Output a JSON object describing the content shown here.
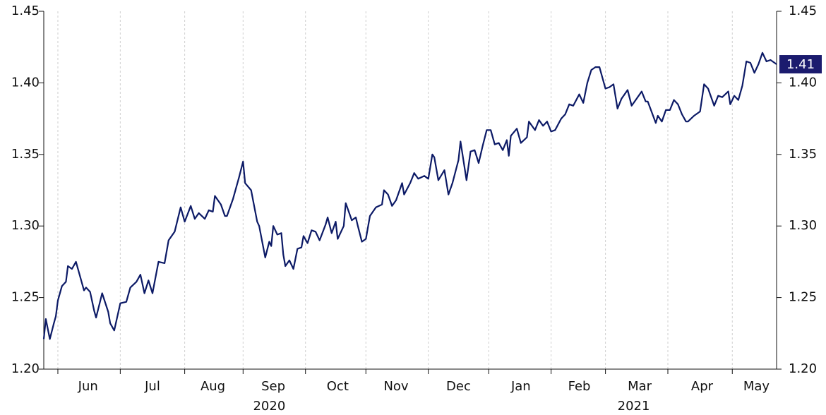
{
  "chart_data": {
    "type": "line",
    "x": [
      0,
      1,
      3,
      5,
      6,
      7,
      9,
      11,
      12,
      14,
      16,
      20,
      21,
      23,
      25,
      26,
      29,
      32,
      33,
      35,
      38,
      41,
      43,
      46,
      48,
      50,
      52,
      54,
      57,
      60,
      62,
      65,
      68,
      70,
      73,
      75,
      77,
      80,
      82,
      84,
      85,
      88,
      90,
      91,
      94,
      97,
      99,
      100,
      103,
      106,
      107,
      110,
      112,
      113,
      114,
      116,
      118,
      119,
      120,
      122,
      124,
      126,
      128,
      129,
      131,
      133,
      135,
      137,
      140,
      141,
      143,
      145,
      146,
      149,
      150,
      153,
      155,
      156,
      158,
      160,
      162,
      165,
      168,
      169,
      171,
      173,
      175,
      178,
      179,
      182,
      184,
      186,
      189,
      191,
      193,
      194,
      196,
      199,
      201,
      203,
      206,
      207,
      210,
      212,
      214,
      216,
      218,
      220,
      222,
      224,
      226,
      228,
      230,
      231,
      232,
      235,
      237,
      240,
      241,
      244,
      246,
      248,
      250,
      252,
      254,
      257,
      259,
      261,
      263,
      266,
      268,
      270,
      272,
      274,
      276,
      279,
      281,
      283,
      285,
      287,
      290,
      292,
      294,
      297,
      299,
      300,
      304,
      305,
      307,
      309,
      311,
      313,
      315,
      317,
      319,
      320,
      323,
      326,
      328,
      330,
      333,
      335,
      337,
      340,
      341,
      343,
      345,
      347,
      349,
      351,
      353,
      355,
      357,
      359,
      361,
      364
    ],
    "values": [
      1.221,
      1.235,
      1.221,
      1.232,
      1.237,
      1.248,
      1.258,
      1.261,
      1.272,
      1.27,
      1.275,
      1.255,
      1.257,
      1.254,
      1.241,
      1.236,
      1.253,
      1.24,
      1.232,
      1.227,
      1.246,
      1.247,
      1.257,
      1.261,
      1.266,
      1.253,
      1.262,
      1.253,
      1.275,
      1.274,
      1.29,
      1.296,
      1.313,
      1.303,
      1.314,
      1.305,
      1.309,
      1.305,
      1.311,
      1.31,
      1.321,
      1.315,
      1.307,
      1.307,
      1.319,
      1.334,
      1.345,
      1.33,
      1.325,
      1.303,
      1.3,
      1.278,
      1.289,
      1.286,
      1.3,
      1.294,
      1.295,
      1.28,
      1.272,
      1.276,
      1.27,
      1.284,
      1.285,
      1.293,
      1.288,
      1.297,
      1.296,
      1.29,
      1.301,
      1.306,
      1.295,
      1.303,
      1.291,
      1.3,
      1.316,
      1.304,
      1.306,
      1.3,
      1.289,
      1.291,
      1.307,
      1.313,
      1.315,
      1.325,
      1.322,
      1.314,
      1.318,
      1.33,
      1.322,
      1.33,
      1.337,
      1.333,
      1.335,
      1.333,
      1.35,
      1.348,
      1.332,
      1.339,
      1.322,
      1.33,
      1.346,
      1.359,
      1.332,
      1.352,
      1.353,
      1.344,
      1.356,
      1.367,
      1.367,
      1.357,
      1.358,
      1.353,
      1.36,
      1.349,
      1.363,
      1.368,
      1.358,
      1.362,
      1.373,
      1.367,
      1.374,
      1.37,
      1.373,
      1.366,
      1.367,
      1.375,
      1.378,
      1.385,
      1.384,
      1.392,
      1.386,
      1.4,
      1.409,
      1.411,
      1.411,
      1.396,
      1.397,
      1.399,
      1.382,
      1.389,
      1.395,
      1.384,
      1.388,
      1.394,
      1.387,
      1.387,
      1.372,
      1.377,
      1.373,
      1.381,
      1.381,
      1.388,
      1.385,
      1.378,
      1.373,
      1.373,
      1.377,
      1.38,
      1.399,
      1.396,
      1.384,
      1.391,
      1.39,
      1.394,
      1.385,
      1.391,
      1.388,
      1.398,
      1.415,
      1.414,
      1.407,
      1.413,
      1.421,
      1.415,
      1.416,
      1.413
    ],
    "color": "#0c1a66",
    "last_label": "1.41",
    "last_label_color": "#1b1b6e",
    "xlim": [
      0,
      364
    ],
    "xticks": [
      7,
      38,
      70,
      99,
      130,
      160,
      191,
      221,
      252,
      279,
      310,
      342
    ],
    "month_labels": [
      {
        "value": 22,
        "label": "Jun"
      },
      {
        "value": 54,
        "label": "Jul"
      },
      {
        "value": 84,
        "label": "Aug"
      },
      {
        "value": 114,
        "label": "Sep"
      },
      {
        "value": 146,
        "label": "Oct"
      },
      {
        "value": 175,
        "label": "Nov"
      },
      {
        "value": 206,
        "label": "Dec"
      },
      {
        "value": 237,
        "label": "Jan"
      },
      {
        "value": 266,
        "label": "Feb"
      },
      {
        "value": 296,
        "label": "Mar"
      },
      {
        "value": 327,
        "label": "Apr"
      },
      {
        "value": 354,
        "label": "May"
      }
    ],
    "year_labels": [
      {
        "value": 112,
        "label": "2020"
      },
      {
        "value": 293,
        "label": "2021"
      }
    ],
    "ylim": [
      1.2,
      1.45
    ],
    "yticks": [
      {
        "value": 1.2,
        "label": "1.20"
      },
      {
        "value": 1.25,
        "label": "1.25"
      },
      {
        "value": 1.3,
        "label": "1.30"
      },
      {
        "value": 1.35,
        "label": "1.35"
      },
      {
        "value": 1.4,
        "label": "1.40"
      },
      {
        "value": 1.45,
        "label": "1.45"
      }
    ],
    "grid": true
  }
}
